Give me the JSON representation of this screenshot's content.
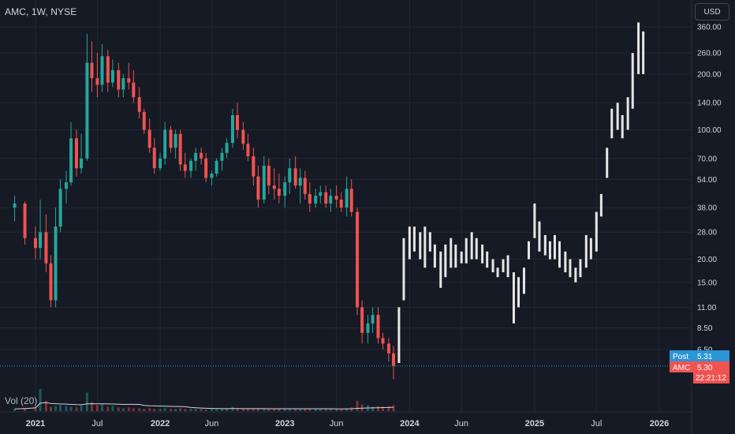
{
  "header": {
    "symbol_title": "AMC, 1W, NYSE",
    "currency": "USD"
  },
  "volume": {
    "label": "Vol (20)"
  },
  "price_tags": {
    "post": {
      "label": "Post",
      "value": "5.31",
      "color": "#2a96d6"
    },
    "last": {
      "label": "AMC",
      "value": "5.30",
      "countdown": "22:21:12",
      "color": "#f05350"
    }
  },
  "colors": {
    "background": "#161a25",
    "up": "#26a69a",
    "down": "#ef5350",
    "projection": "#e6e6e6",
    "grid": "#232734",
    "text": "#d1d4dc"
  },
  "chart_data": {
    "type": "candlestick",
    "title": "AMC, 1W, NYSE",
    "yscale": "log",
    "y_ticks": [
      "360.00",
      "260.00",
      "200.00",
      "140.00",
      "100.00",
      "70.00",
      "54.00",
      "38.00",
      "28.00",
      "20.00",
      "15.00",
      "11.00",
      "8.50",
      "6.50"
    ],
    "y_tick_values": [
      360,
      260,
      200,
      140,
      100,
      70,
      54,
      38,
      28,
      20,
      15,
      11,
      8.5,
      6.5
    ],
    "x_ticks": [
      {
        "label": "2021",
        "major": true,
        "date": "2021-01-01"
      },
      {
        "label": "Jul",
        "major": false,
        "date": "2021-07-01"
      },
      {
        "label": "2022",
        "major": true,
        "date": "2022-01-01"
      },
      {
        "label": "Jun",
        "major": false,
        "date": "2022-06-01"
      },
      {
        "label": "2023",
        "major": true,
        "date": "2023-01-01"
      },
      {
        "label": "Jun",
        "major": false,
        "date": "2023-06-01"
      },
      {
        "label": "2024",
        "major": true,
        "date": "2024-01-01"
      },
      {
        "label": "Jun",
        "major": false,
        "date": "2024-06-01"
      },
      {
        "label": "2025",
        "major": true,
        "date": "2025-01-01"
      },
      {
        "label": "Jul",
        "major": false,
        "date": "2025-07-01"
      },
      {
        "label": "2026",
        "major": true,
        "date": "2026-01-01"
      }
    ],
    "series": [
      {
        "name": "AMC",
        "kind": "candles",
        "points": [
          [
            "2020-11-01",
            38,
            44,
            32,
            40
          ],
          [
            "2020-12-01",
            40,
            41,
            24,
            26
          ],
          [
            "2021-01-01",
            26,
            30,
            20,
            23
          ],
          [
            "2021-01-15",
            23,
            42,
            20,
            28
          ],
          [
            "2021-02-01",
            28,
            35,
            17,
            19
          ],
          [
            "2021-02-15",
            19,
            21,
            11,
            12
          ],
          [
            "2021-03-01",
            12,
            38,
            11,
            30
          ],
          [
            "2021-03-15",
            30,
            54,
            28,
            48
          ],
          [
            "2021-04-01",
            48,
            60,
            40,
            52
          ],
          [
            "2021-04-15",
            52,
            110,
            50,
            90
          ],
          [
            "2021-05-01",
            90,
            100,
            56,
            62
          ],
          [
            "2021-05-15",
            62,
            95,
            58,
            70
          ],
          [
            "2021-06-01",
            70,
            330,
            68,
            230
          ],
          [
            "2021-06-15",
            230,
            300,
            160,
            190
          ],
          [
            "2021-07-01",
            190,
            260,
            150,
            175
          ],
          [
            "2021-07-15",
            175,
            290,
            160,
            250
          ],
          [
            "2021-08-01",
            250,
            270,
            160,
            180
          ],
          [
            "2021-08-15",
            180,
            240,
            170,
            210
          ],
          [
            "2021-09-01",
            210,
            230,
            150,
            165
          ],
          [
            "2021-09-15",
            165,
            200,
            150,
            190
          ],
          [
            "2021-10-01",
            190,
            230,
            165,
            180
          ],
          [
            "2021-10-15",
            180,
            210,
            140,
            150
          ],
          [
            "2021-11-01",
            150,
            170,
            115,
            125
          ],
          [
            "2021-11-15",
            125,
            130,
            95,
            100
          ],
          [
            "2021-12-01",
            100,
            115,
            75,
            80
          ],
          [
            "2021-12-15",
            80,
            90,
            58,
            62
          ],
          [
            "2022-01-01",
            62,
            75,
            60,
            70
          ],
          [
            "2022-01-15",
            70,
            110,
            65,
            100
          ],
          [
            "2022-02-01",
            100,
            105,
            75,
            80
          ],
          [
            "2022-02-15",
            80,
            100,
            70,
            95
          ],
          [
            "2022-03-01",
            95,
            100,
            60,
            65
          ],
          [
            "2022-03-15",
            65,
            75,
            55,
            60
          ],
          [
            "2022-04-01",
            60,
            70,
            55,
            68
          ],
          [
            "2022-04-15",
            68,
            80,
            60,
            75
          ],
          [
            "2022-05-01",
            75,
            80,
            65,
            70
          ],
          [
            "2022-05-15",
            70,
            75,
            52,
            55
          ],
          [
            "2022-06-01",
            55,
            60,
            50,
            58
          ],
          [
            "2022-06-15",
            58,
            70,
            56,
            68
          ],
          [
            "2022-07-01",
            68,
            80,
            60,
            75
          ],
          [
            "2022-07-15",
            75,
            90,
            70,
            85
          ],
          [
            "2022-08-01",
            85,
            130,
            80,
            120
          ],
          [
            "2022-08-15",
            120,
            140,
            90,
            100
          ],
          [
            "2022-09-01",
            100,
            110,
            78,
            84
          ],
          [
            "2022-09-15",
            84,
            95,
            68,
            72
          ],
          [
            "2022-10-01",
            72,
            80,
            50,
            56
          ],
          [
            "2022-10-15",
            56,
            64,
            38,
            42
          ],
          [
            "2022-11-01",
            42,
            72,
            40,
            64
          ],
          [
            "2022-11-15",
            64,
            70,
            45,
            50
          ],
          [
            "2022-12-01",
            50,
            62,
            42,
            48
          ],
          [
            "2022-12-15",
            48,
            58,
            40,
            44
          ],
          [
            "2023-01-01",
            44,
            56,
            38,
            52
          ],
          [
            "2023-01-15",
            52,
            70,
            45,
            62
          ],
          [
            "2023-02-01",
            62,
            72,
            48,
            50
          ],
          [
            "2023-02-15",
            50,
            62,
            40,
            55
          ],
          [
            "2023-03-01",
            55,
            60,
            42,
            45
          ],
          [
            "2023-03-15",
            45,
            52,
            36,
            40
          ],
          [
            "2023-04-01",
            40,
            48,
            38,
            44
          ],
          [
            "2023-04-15",
            44,
            50,
            40,
            46
          ],
          [
            "2023-05-01",
            46,
            50,
            38,
            40
          ],
          [
            "2023-05-15",
            40,
            48,
            36,
            44
          ],
          [
            "2023-06-01",
            44,
            50,
            38,
            42
          ],
          [
            "2023-06-15",
            42,
            46,
            36,
            38
          ],
          [
            "2023-07-01",
            38,
            56,
            34,
            48
          ],
          [
            "2023-07-15",
            48,
            54,
            34,
            36
          ],
          [
            "2023-08-01",
            36,
            38,
            10,
            11
          ],
          [
            "2023-08-15",
            11,
            12,
            7,
            8
          ],
          [
            "2023-09-01",
            8,
            10,
            7,
            9
          ],
          [
            "2023-09-15",
            9,
            11,
            8,
            10
          ],
          [
            "2023-10-01",
            10,
            11,
            7,
            7.5
          ],
          [
            "2023-10-15",
            7.5,
            8,
            6.5,
            7
          ],
          [
            "2023-11-01",
            7,
            7.5,
            5.6,
            6.2
          ],
          [
            "2023-11-15",
            6.2,
            6.8,
            4.5,
            5.3
          ]
        ]
      },
      {
        "name": "",
        "kind": "projection-bars",
        "points": [
          [
            "2023-12-01",
            5.5,
            11
          ],
          [
            "2023-12-15",
            12,
            26
          ],
          [
            "2024-01-01",
            20,
            30
          ],
          [
            "2024-01-15",
            22,
            30
          ],
          [
            "2024-02-01",
            20,
            28
          ],
          [
            "2024-02-15",
            18,
            30
          ],
          [
            "2024-03-01",
            22,
            28
          ],
          [
            "2024-03-15",
            18,
            24
          ],
          [
            "2024-04-01",
            14,
            22
          ],
          [
            "2024-04-15",
            16,
            24
          ],
          [
            "2024-05-01",
            18,
            26
          ],
          [
            "2024-05-15",
            18,
            24
          ],
          [
            "2024-06-01",
            19,
            22
          ],
          [
            "2024-06-15",
            19,
            26
          ],
          [
            "2024-07-01",
            20,
            28
          ],
          [
            "2024-07-15",
            20,
            26
          ],
          [
            "2024-08-01",
            19,
            24
          ],
          [
            "2024-08-15",
            18,
            22
          ],
          [
            "2024-09-01",
            17,
            20
          ],
          [
            "2024-09-15",
            16,
            18
          ],
          [
            "2024-10-01",
            17,
            20
          ],
          [
            "2024-10-15",
            16,
            21
          ],
          [
            "2024-11-01",
            9,
            17
          ],
          [
            "2024-11-15",
            11,
            16
          ],
          [
            "2024-12-01",
            13,
            18
          ],
          [
            "2024-12-15",
            20,
            25
          ],
          [
            "2025-01-01",
            26,
            40
          ],
          [
            "2025-01-15",
            22,
            32
          ],
          [
            "2025-02-01",
            21,
            27
          ],
          [
            "2025-02-15",
            20,
            25
          ],
          [
            "2025-03-01",
            20,
            27
          ],
          [
            "2025-03-15",
            18,
            25
          ],
          [
            "2025-04-01",
            17,
            22
          ],
          [
            "2025-04-15",
            16,
            20
          ],
          [
            "2025-05-01",
            15,
            18
          ],
          [
            "2025-05-15",
            16,
            20
          ],
          [
            "2025-06-01",
            18,
            27
          ],
          [
            "2025-06-15",
            20,
            26
          ],
          [
            "2025-07-01",
            22,
            36
          ],
          [
            "2025-07-15",
            34,
            45
          ],
          [
            "2025-08-01",
            55,
            80
          ],
          [
            "2025-08-15",
            90,
            130
          ],
          [
            "2025-09-01",
            100,
            140
          ],
          [
            "2025-09-15",
            90,
            120
          ],
          [
            "2025-10-01",
            100,
            150
          ],
          [
            "2025-10-15",
            130,
            260
          ],
          [
            "2025-11-01",
            200,
            380
          ],
          [
            "2025-11-15",
            200,
            340
          ]
        ]
      }
    ],
    "volume": [
      [
        "2020-11-01",
        3
      ],
      [
        "2020-12-01",
        4
      ],
      [
        "2021-01-01",
        6
      ],
      [
        "2021-01-15",
        30
      ],
      [
        "2021-02-01",
        14
      ],
      [
        "2021-02-15",
        6
      ],
      [
        "2021-03-01",
        7
      ],
      [
        "2021-03-15",
        8
      ],
      [
        "2021-04-01",
        7
      ],
      [
        "2021-04-15",
        6
      ],
      [
        "2021-05-01",
        5
      ],
      [
        "2021-05-15",
        8
      ],
      [
        "2021-06-01",
        25
      ],
      [
        "2021-06-15",
        12
      ],
      [
        "2021-07-01",
        8
      ],
      [
        "2021-07-15",
        10
      ],
      [
        "2021-08-01",
        6
      ],
      [
        "2021-08-15",
        7
      ],
      [
        "2021-09-01",
        5
      ],
      [
        "2021-09-15",
        4
      ],
      [
        "2021-10-01",
        5
      ],
      [
        "2021-10-15",
        4
      ],
      [
        "2021-11-01",
        4
      ],
      [
        "2021-11-15",
        3
      ],
      [
        "2021-12-01",
        4
      ],
      [
        "2021-12-15",
        3
      ],
      [
        "2022-01-01",
        3
      ],
      [
        "2022-01-15",
        4
      ],
      [
        "2022-02-01",
        3
      ],
      [
        "2022-02-15",
        3
      ],
      [
        "2022-03-01",
        4
      ],
      [
        "2022-03-15",
        3
      ],
      [
        "2022-04-01",
        3
      ],
      [
        "2022-04-15",
        3
      ],
      [
        "2022-05-01",
        3
      ],
      [
        "2022-05-15",
        2
      ],
      [
        "2022-06-01",
        3
      ],
      [
        "2022-06-15",
        3
      ],
      [
        "2022-07-01",
        3
      ],
      [
        "2022-07-15",
        4
      ],
      [
        "2022-08-01",
        6
      ],
      [
        "2022-08-15",
        4
      ],
      [
        "2022-09-01",
        3
      ],
      [
        "2022-09-15",
        3
      ],
      [
        "2022-10-01",
        3
      ],
      [
        "2022-10-15",
        3
      ],
      [
        "2022-11-01",
        3
      ],
      [
        "2022-11-15",
        3
      ],
      [
        "2022-12-01",
        3
      ],
      [
        "2022-12-15",
        3
      ],
      [
        "2023-01-01",
        3
      ],
      [
        "2023-01-15",
        3
      ],
      [
        "2023-02-01",
        3
      ],
      [
        "2023-02-15",
        3
      ],
      [
        "2023-03-01",
        3
      ],
      [
        "2023-03-15",
        3
      ],
      [
        "2023-04-01",
        3
      ],
      [
        "2023-04-15",
        3
      ],
      [
        "2023-05-01",
        3
      ],
      [
        "2023-05-15",
        3
      ],
      [
        "2023-06-01",
        3
      ],
      [
        "2023-06-15",
        3
      ],
      [
        "2023-07-01",
        4
      ],
      [
        "2023-07-15",
        5
      ],
      [
        "2023-08-01",
        14
      ],
      [
        "2023-08-15",
        9
      ],
      [
        "2023-09-01",
        8
      ],
      [
        "2023-09-15",
        6
      ],
      [
        "2023-10-01",
        7
      ],
      [
        "2023-10-15",
        6
      ],
      [
        "2023-11-01",
        7
      ],
      [
        "2023-11-15",
        8
      ]
    ],
    "last_price_line": 5.3
  }
}
